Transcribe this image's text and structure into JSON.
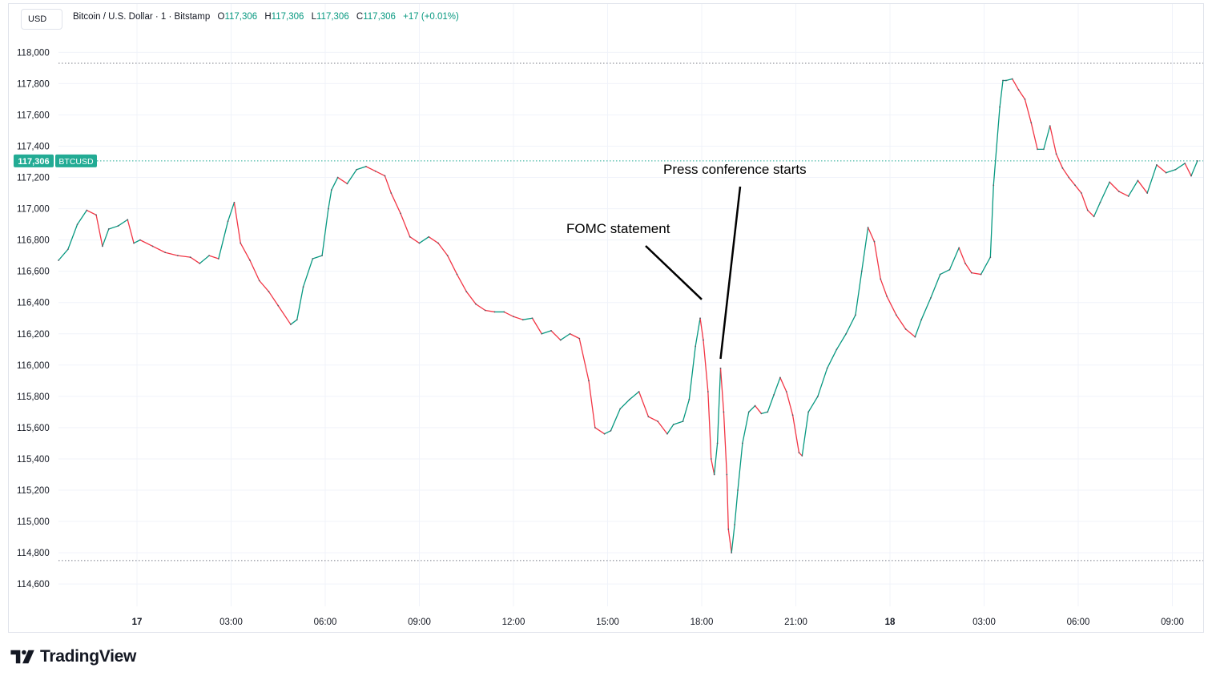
{
  "header": {
    "currency": "USD",
    "instrument": "Bitcoin / U.S. Dollar · 1 · Bitstamp",
    "open_label": "O",
    "open": "117,306",
    "high_label": "H",
    "high": "117,306",
    "low_label": "L",
    "low": "117,306",
    "close_label": "C",
    "close": "117,306",
    "change": "+17 (+0.01%)"
  },
  "price_tag": {
    "value": "117,306",
    "symbol": "BTCUSD"
  },
  "brand": {
    "name": "TradingView",
    "logo_icon": "tradingview-logo-icon"
  },
  "colors": {
    "up": "#089981",
    "down": "#f23645",
    "accent": "#22ab94",
    "grid": "#f0f3fa"
  },
  "chart_data": {
    "type": "line",
    "x_tick_labels": [
      "17",
      "03:00",
      "06:00",
      "09:00",
      "12:00",
      "15:00",
      "18:00",
      "21:00",
      "18",
      "03:00",
      "06:00",
      "09:00"
    ],
    "x_tick_hours": [
      0,
      3,
      6,
      9,
      12,
      15,
      18,
      21,
      24,
      27,
      30,
      33
    ],
    "x_range_hours": [
      -2.5,
      34.0
    ],
    "y_tick_labels": [
      "118,000",
      "117,800",
      "117,600",
      "117,400",
      "117,200",
      "117,000",
      "116,800",
      "116,600",
      "116,400",
      "116,200",
      "116,000",
      "115,800",
      "115,600",
      "115,400",
      "115,200",
      "115,000",
      "114,800",
      "114,600"
    ],
    "y_ticks": [
      118000,
      117800,
      117600,
      117400,
      117200,
      117000,
      116800,
      116600,
      116400,
      116200,
      116000,
      115800,
      115600,
      115400,
      115200,
      115000,
      114800,
      114600
    ],
    "ylim": [
      114500,
      118200
    ],
    "dotted_levels": [
      117930,
      117306,
      114750
    ],
    "grid": true,
    "series": [
      {
        "points": [
          [
            -2.5,
            116670
          ],
          [
            -2.2,
            116740
          ],
          [
            -1.9,
            116900
          ],
          [
            -1.6,
            116990
          ],
          [
            -1.3,
            116960
          ],
          [
            -1.1,
            116760
          ],
          [
            -0.9,
            116870
          ],
          [
            -0.6,
            116890
          ],
          [
            -0.3,
            116930
          ],
          [
            -0.1,
            116780
          ],
          [
            0.1,
            116800
          ],
          [
            0.5,
            116760
          ],
          [
            0.9,
            116720
          ],
          [
            1.3,
            116700
          ],
          [
            1.7,
            116690
          ],
          [
            2.0,
            116650
          ],
          [
            2.3,
            116700
          ],
          [
            2.6,
            116680
          ],
          [
            2.9,
            116920
          ],
          [
            3.1,
            117040
          ],
          [
            3.3,
            116780
          ],
          [
            3.6,
            116670
          ],
          [
            3.9,
            116540
          ],
          [
            4.2,
            116470
          ],
          [
            4.5,
            116380
          ],
          [
            4.9,
            116260
          ],
          [
            5.1,
            116290
          ],
          [
            5.3,
            116500
          ],
          [
            5.6,
            116680
          ],
          [
            5.9,
            116700
          ],
          [
            6.1,
            117000
          ],
          [
            6.2,
            117120
          ],
          [
            6.4,
            117200
          ],
          [
            6.7,
            117160
          ],
          [
            7.0,
            117250
          ],
          [
            7.3,
            117270
          ],
          [
            7.6,
            117240
          ],
          [
            7.9,
            117210
          ],
          [
            8.1,
            117100
          ],
          [
            8.4,
            116970
          ],
          [
            8.7,
            116820
          ],
          [
            9.0,
            116780
          ],
          [
            9.3,
            116820
          ],
          [
            9.6,
            116780
          ],
          [
            9.9,
            116700
          ],
          [
            10.2,
            116580
          ],
          [
            10.5,
            116470
          ],
          [
            10.8,
            116390
          ],
          [
            11.1,
            116350
          ],
          [
            11.4,
            116340
          ],
          [
            11.7,
            116340
          ],
          [
            12.0,
            116310
          ],
          [
            12.3,
            116290
          ],
          [
            12.6,
            116300
          ],
          [
            12.9,
            116200
          ],
          [
            13.2,
            116220
          ],
          [
            13.5,
            116160
          ],
          [
            13.8,
            116200
          ],
          [
            14.1,
            116170
          ],
          [
            14.4,
            115900
          ],
          [
            14.6,
            115600
          ],
          [
            14.9,
            115560
          ],
          [
            15.1,
            115580
          ],
          [
            15.4,
            115720
          ],
          [
            15.7,
            115780
          ],
          [
            16.0,
            115830
          ],
          [
            16.3,
            115670
          ],
          [
            16.6,
            115640
          ],
          [
            16.9,
            115560
          ],
          [
            17.1,
            115620
          ],
          [
            17.4,
            115640
          ],
          [
            17.6,
            115780
          ],
          [
            17.8,
            116120
          ],
          [
            17.95,
            116300
          ],
          [
            18.05,
            116160
          ],
          [
            18.2,
            115830
          ],
          [
            18.3,
            115400
          ],
          [
            18.4,
            115300
          ],
          [
            18.5,
            115500
          ],
          [
            18.6,
            115980
          ],
          [
            18.7,
            115700
          ],
          [
            18.8,
            115300
          ],
          [
            18.85,
            114950
          ],
          [
            18.95,
            114800
          ],
          [
            19.05,
            114980
          ],
          [
            19.15,
            115200
          ],
          [
            19.3,
            115500
          ],
          [
            19.5,
            115700
          ],
          [
            19.7,
            115740
          ],
          [
            19.9,
            115690
          ],
          [
            20.1,
            115700
          ],
          [
            20.3,
            115810
          ],
          [
            20.5,
            115920
          ],
          [
            20.7,
            115830
          ],
          [
            20.9,
            115680
          ],
          [
            21.1,
            115440
          ],
          [
            21.2,
            115420
          ],
          [
            21.4,
            115700
          ],
          [
            21.7,
            115800
          ],
          [
            22.0,
            115980
          ],
          [
            22.3,
            116100
          ],
          [
            22.6,
            116200
          ],
          [
            22.9,
            116320
          ],
          [
            23.1,
            116600
          ],
          [
            23.3,
            116880
          ],
          [
            23.5,
            116790
          ],
          [
            23.7,
            116550
          ],
          [
            23.9,
            116440
          ],
          [
            24.2,
            116320
          ],
          [
            24.5,
            116230
          ],
          [
            24.8,
            116180
          ],
          [
            25.0,
            116290
          ],
          [
            25.3,
            116430
          ],
          [
            25.6,
            116580
          ],
          [
            25.9,
            116610
          ],
          [
            26.2,
            116750
          ],
          [
            26.4,
            116650
          ],
          [
            26.6,
            116590
          ],
          [
            26.9,
            116580
          ],
          [
            27.2,
            116690
          ],
          [
            27.3,
            117150
          ],
          [
            27.5,
            117650
          ],
          [
            27.6,
            117820
          ],
          [
            27.7,
            117820
          ],
          [
            27.9,
            117830
          ],
          [
            28.1,
            117760
          ],
          [
            28.3,
            117700
          ],
          [
            28.5,
            117550
          ],
          [
            28.7,
            117380
          ],
          [
            28.9,
            117380
          ],
          [
            29.1,
            117530
          ],
          [
            29.3,
            117350
          ],
          [
            29.5,
            117260
          ],
          [
            29.7,
            117200
          ],
          [
            29.9,
            117150
          ],
          [
            30.1,
            117100
          ],
          [
            30.3,
            116990
          ],
          [
            30.5,
            116950
          ],
          [
            30.7,
            117040
          ],
          [
            31.0,
            117170
          ],
          [
            31.3,
            117110
          ],
          [
            31.6,
            117080
          ],
          [
            31.9,
            117180
          ],
          [
            32.2,
            117100
          ],
          [
            32.5,
            117280
          ],
          [
            32.8,
            117230
          ],
          [
            33.1,
            117250
          ],
          [
            33.4,
            117290
          ],
          [
            33.6,
            117210
          ],
          [
            33.8,
            117306
          ]
        ]
      }
    ],
    "annotations": [
      {
        "text": "FOMC statement",
        "label_hour": 18.0,
        "label_price": 116420
      },
      {
        "text": "Press conference starts",
        "label_hour": 18.6,
        "label_price": 116040
      }
    ]
  }
}
